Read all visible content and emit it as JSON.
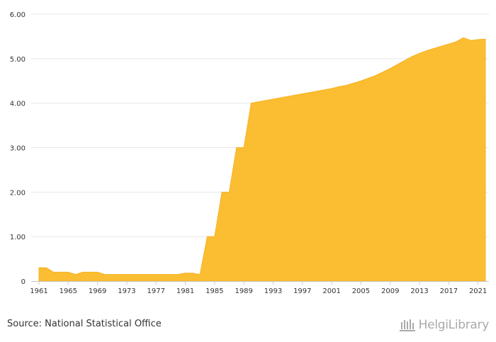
{
  "chart_data": {
    "type": "area",
    "title": "",
    "xlabel": "",
    "ylabel": "",
    "x": [
      1961,
      1962,
      1963,
      1964,
      1965,
      1966,
      1967,
      1968,
      1969,
      1970,
      1971,
      1972,
      1973,
      1974,
      1975,
      1976,
      1977,
      1978,
      1979,
      1980,
      1981,
      1982,
      1983,
      1984,
      1985,
      1986,
      1987,
      1988,
      1989,
      1990,
      1991,
      1992,
      1993,
      1994,
      1995,
      1996,
      1997,
      1998,
      1999,
      2000,
      2001,
      2002,
      2003,
      2004,
      2005,
      2006,
      2007,
      2008,
      2009,
      2010,
      2011,
      2012,
      2013,
      2014,
      2015,
      2016,
      2017,
      2018,
      2019,
      2020,
      2021,
      2022
    ],
    "values": [
      0.3,
      0.3,
      0.2,
      0.2,
      0.2,
      0.15,
      0.2,
      0.2,
      0.2,
      0.15,
      0.15,
      0.15,
      0.15,
      0.15,
      0.15,
      0.15,
      0.15,
      0.15,
      0.15,
      0.15,
      0.18,
      0.18,
      0.15,
      1.0,
      1.0,
      2.0,
      2.0,
      3.0,
      3.0,
      4.0,
      4.03,
      4.06,
      4.09,
      4.12,
      4.15,
      4.18,
      4.21,
      4.24,
      4.27,
      4.3,
      4.33,
      4.37,
      4.4,
      4.45,
      4.5,
      4.56,
      4.62,
      4.7,
      4.78,
      4.87,
      4.96,
      5.05,
      5.12,
      5.18,
      5.23,
      5.28,
      5.33,
      5.38,
      5.47,
      5.41,
      5.43,
      5.44
    ],
    "xticks": [
      "1961",
      "1965",
      "1969",
      "1973",
      "1977",
      "1981",
      "1985",
      "1989",
      "1993",
      "1997",
      "2001",
      "2005",
      "2009",
      "2013",
      "2017",
      "2021"
    ],
    "yticks": [
      "0",
      "1.00",
      "2.00",
      "3.00",
      "4.00",
      "5.00",
      "6.00"
    ],
    "ylim": [
      0,
      6
    ],
    "grid": true,
    "fill_color": "#fbbd32",
    "stroke_color": "#f7b21e"
  },
  "footer": {
    "source": "Source: National Statistical Office",
    "logo": "HelgiLibrary"
  }
}
